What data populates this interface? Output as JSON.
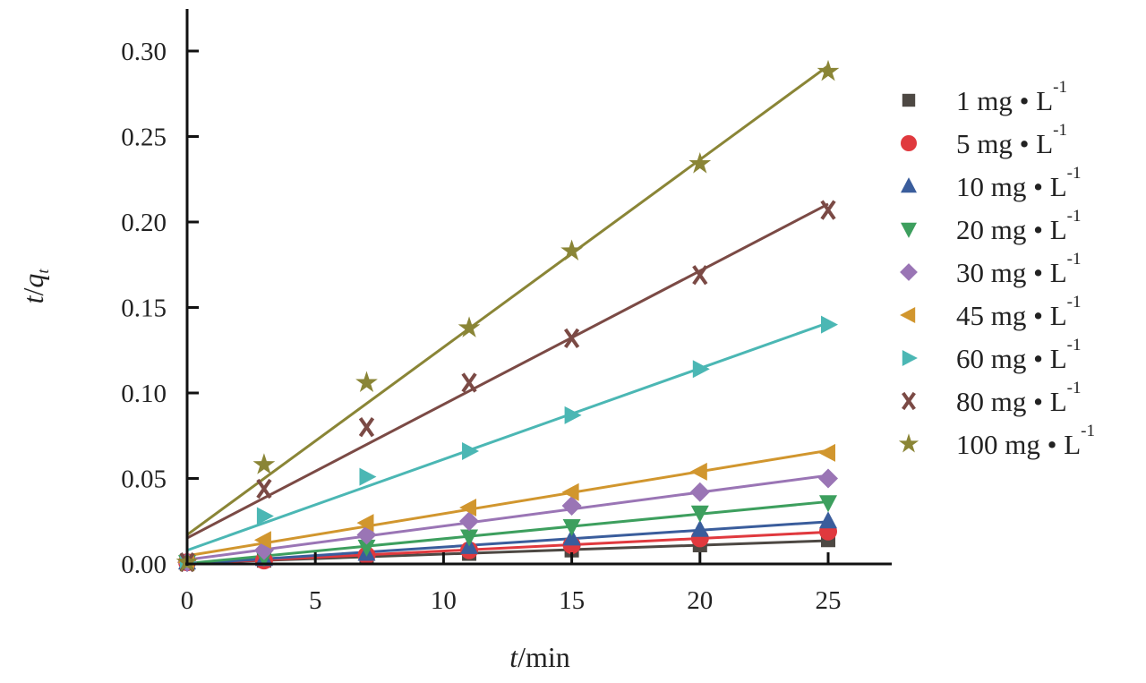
{
  "chart_data": {
    "type": "scatter",
    "title": "",
    "xlabel": {
      "italic": "t",
      "rest": "/min"
    },
    "ylabel": {
      "italic": "t",
      "sep": "/",
      "italic2": "q",
      "sub": "t"
    },
    "xlim": [
      0,
      27.4
    ],
    "ylim": [
      0,
      0.32
    ],
    "xticks": [
      "0",
      "5",
      "10",
      "15",
      "20",
      "25"
    ],
    "yticks": [
      "0.00",
      "0.05",
      "0.10",
      "0.15",
      "0.20",
      "0.25",
      "0.30"
    ],
    "legend_position": "right",
    "x": [
      0,
      3,
      7,
      11,
      15,
      20,
      25
    ],
    "series": [
      {
        "name": "1 mg • L",
        "sup": "-1",
        "marker": "square",
        "color": "#4d4843",
        "values": [
          0.001,
          0.002,
          0.004,
          0.006,
          0.008,
          0.011,
          0.014
        ]
      },
      {
        "name": "5 mg • L",
        "sup": "-1",
        "marker": "circle",
        "color": "#e0393e",
        "values": [
          0.001,
          0.002,
          0.005,
          0.008,
          0.011,
          0.015,
          0.019
        ]
      },
      {
        "name": "10 mg • L",
        "sup": "-1",
        "marker": "triangle-up",
        "color": "#3a5d9c",
        "values": [
          0.001,
          0.003,
          0.006,
          0.01,
          0.015,
          0.02,
          0.025
        ]
      },
      {
        "name": "20 mg • L",
        "sup": "-1",
        "marker": "triangle-down",
        "color": "#3d9f5e",
        "values": [
          0.001,
          0.004,
          0.01,
          0.016,
          0.022,
          0.03,
          0.036
        ]
      },
      {
        "name": "30 mg • L",
        "sup": "-1",
        "marker": "diamond",
        "color": "#9a75b5",
        "values": [
          0.001,
          0.008,
          0.017,
          0.025,
          0.034,
          0.042,
          0.05
        ]
      },
      {
        "name": "45 mg • L",
        "sup": "-1",
        "marker": "triangle-left",
        "color": "#d1962e",
        "values": [
          0.001,
          0.014,
          0.024,
          0.033,
          0.042,
          0.054,
          0.065
        ]
      },
      {
        "name": "60 mg • L",
        "sup": "-1",
        "marker": "triangle-right",
        "color": "#4bb7b4",
        "values": [
          0.001,
          0.028,
          0.051,
          0.066,
          0.087,
          0.114,
          0.14
        ]
      },
      {
        "name": "80 mg • L",
        "sup": "-1",
        "marker": "x",
        "color": "#7b4a45",
        "values": [
          0.001,
          0.044,
          0.08,
          0.106,
          0.132,
          0.169,
          0.207
        ]
      },
      {
        "name": "100 mg • L",
        "sup": "-1",
        "marker": "star",
        "color": "#8a8536",
        "values": [
          0.001,
          0.058,
          0.106,
          0.138,
          0.183,
          0.234,
          0.288
        ]
      }
    ]
  }
}
